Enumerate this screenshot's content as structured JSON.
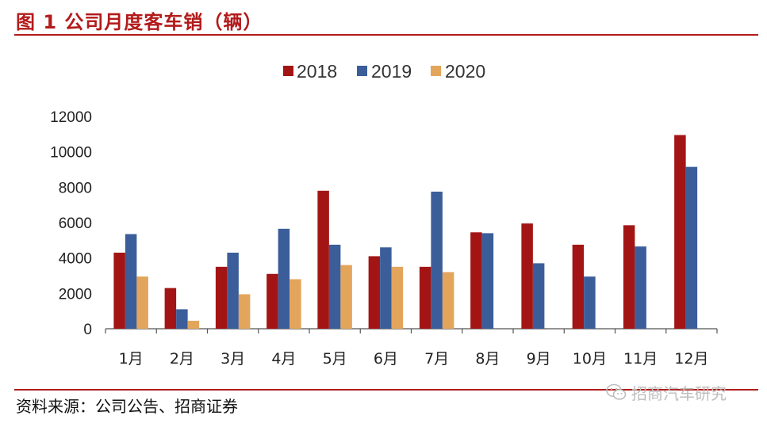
{
  "header": {
    "title": "图 1  公司月度客车销（辆）"
  },
  "footer": {
    "source": "资料来源：公司公告、招商证券",
    "watermark": "招商汽车研究",
    "watermark_icon": "wechat-icon"
  },
  "colors": {
    "accent": "#b31b1b",
    "s2018": "#a31515",
    "s2019": "#3b5e9a",
    "s2020": "#e3a55c"
  },
  "chart_data": {
    "type": "bar",
    "title": "",
    "xlabel": "",
    "ylabel": "",
    "categories": [
      "1月",
      "2月",
      "3月",
      "4月",
      "5月",
      "6月",
      "7月",
      "8月",
      "9月",
      "10月",
      "11月",
      "12月"
    ],
    "series": [
      {
        "name": "2018",
        "color": "#a31515",
        "values": [
          4300,
          2300,
          3500,
          3100,
          7800,
          4100,
          3500,
          5450,
          5950,
          4750,
          5850,
          10950
        ]
      },
      {
        "name": "2019",
        "color": "#3b5e9a",
        "values": [
          5350,
          1100,
          4300,
          5650,
          4750,
          4600,
          7750,
          5400,
          3700,
          2950,
          4650,
          9150
        ]
      },
      {
        "name": "2020",
        "color": "#e3a55c",
        "values": [
          2950,
          450,
          1950,
          2800,
          3600,
          3500,
          3200,
          null,
          null,
          null,
          null,
          null
        ]
      }
    ],
    "ylim": [
      0,
      12000
    ],
    "yticks": [
      0,
      2000,
      4000,
      6000,
      8000,
      10000,
      12000
    ],
    "grid": false,
    "legend": "top-center"
  }
}
